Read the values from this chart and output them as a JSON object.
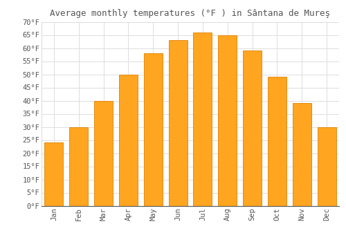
{
  "title": "Average monthly temperatures (°F ) in Sântana de Mureş",
  "months": [
    "Jan",
    "Feb",
    "Mar",
    "Apr",
    "May",
    "Jun",
    "Jul",
    "Aug",
    "Sep",
    "Oct",
    "Nov",
    "Dec"
  ],
  "values": [
    24,
    30,
    40,
    50,
    58,
    63,
    66,
    65,
    59,
    49,
    39,
    30
  ],
  "bar_color": "#FFA520",
  "bar_edge_color": "#E08000",
  "background_color": "#FFFFFF",
  "plot_bg_color": "#FAFAFA",
  "grid_color": "#DDDDDD",
  "text_color": "#555555",
  "ylim": [
    0,
    70
  ],
  "yticks": [
    0,
    5,
    10,
    15,
    20,
    25,
    30,
    35,
    40,
    45,
    50,
    55,
    60,
    65,
    70
  ],
  "ytick_labels": [
    "0°F",
    "5°F",
    "10°F",
    "15°F",
    "20°F",
    "25°F",
    "30°F",
    "35°F",
    "40°F",
    "45°F",
    "50°F",
    "55°F",
    "60°F",
    "65°F",
    "70°F"
  ],
  "title_fontsize": 9,
  "tick_fontsize": 7.5,
  "font_family": "monospace"
}
